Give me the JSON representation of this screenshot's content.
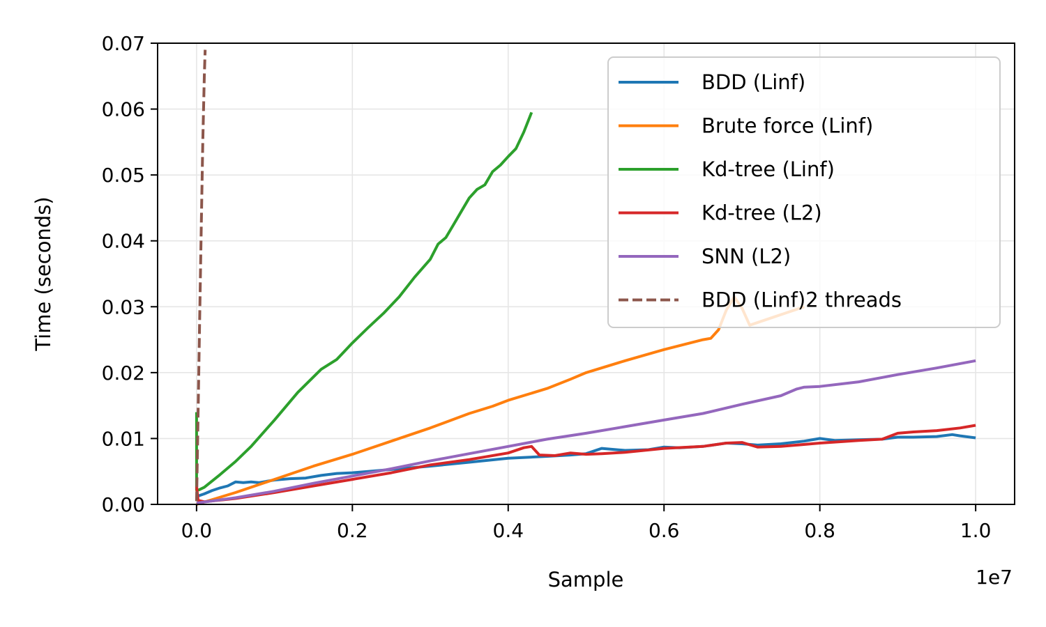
{
  "chart_data": {
    "type": "line",
    "title": "",
    "xlabel": "Sample",
    "ylabel": "Time (seconds)",
    "x_offset_label": "1e7",
    "xlim": [
      -0.05,
      1.05
    ],
    "ylim": [
      0,
      0.07
    ],
    "xticks": [
      0.0,
      0.2,
      0.4,
      0.6,
      0.8,
      1.0
    ],
    "xtick_labels": [
      "0.0",
      "0.2",
      "0.4",
      "0.6",
      "0.8",
      "1.0"
    ],
    "yticks": [
      0.0,
      0.01,
      0.02,
      0.03,
      0.04,
      0.05,
      0.06,
      0.07
    ],
    "ytick_labels": [
      "0.00",
      "0.01",
      "0.02",
      "0.03",
      "0.04",
      "0.05",
      "0.06",
      "0.07"
    ],
    "grid": true,
    "legend_position": "top-right",
    "series": [
      {
        "name": "BDD (Linf)",
        "color": "#1f77b4",
        "dash": "solid",
        "x": [
          0.0,
          0.01,
          0.02,
          0.03,
          0.04,
          0.05,
          0.06,
          0.07,
          0.08,
          0.09,
          0.1,
          0.12,
          0.14,
          0.16,
          0.18,
          0.2,
          0.22,
          0.25,
          0.3,
          0.35,
          0.4,
          0.45,
          0.48,
          0.5,
          0.52,
          0.55,
          0.58,
          0.6,
          0.62,
          0.65,
          0.68,
          0.7,
          0.72,
          0.75,
          0.78,
          0.8,
          0.82,
          0.85,
          0.88,
          0.9,
          0.92,
          0.95,
          0.97,
          0.98,
          1.0
        ],
        "y": [
          0.0012,
          0.0016,
          0.0021,
          0.0025,
          0.0028,
          0.0034,
          0.0033,
          0.0034,
          0.0033,
          0.0035,
          0.0037,
          0.0039,
          0.004,
          0.0044,
          0.0047,
          0.0048,
          0.005,
          0.0053,
          0.0058,
          0.0064,
          0.007,
          0.0073,
          0.0075,
          0.0077,
          0.0085,
          0.0082,
          0.0083,
          0.0087,
          0.0086,
          0.0088,
          0.0093,
          0.0092,
          0.009,
          0.0092,
          0.0096,
          0.01,
          0.0097,
          0.0098,
          0.0099,
          0.0102,
          0.0102,
          0.0103,
          0.0106,
          0.0104,
          0.0101
        ]
      },
      {
        "name": "Brute force (Linf)",
        "color": "#ff7f0e",
        "dash": "solid",
        "x": [
          0.0,
          0.05,
          0.1,
          0.15,
          0.2,
          0.25,
          0.3,
          0.35,
          0.38,
          0.4,
          0.45,
          0.48,
          0.5,
          0.55,
          0.6,
          0.65,
          0.66,
          0.67,
          0.68,
          0.69,
          0.7,
          0.71,
          0.73,
          0.76,
          0.78
        ],
        "y": [
          0.0,
          0.0018,
          0.0038,
          0.0058,
          0.0076,
          0.0096,
          0.0116,
          0.0138,
          0.0149,
          0.0158,
          0.0176,
          0.019,
          0.02,
          0.0218,
          0.0235,
          0.025,
          0.0252,
          0.0265,
          0.0295,
          0.0315,
          0.0298,
          0.0272,
          0.028,
          0.0292,
          0.03
        ]
      },
      {
        "name": "Kd-tree (Linf)",
        "color": "#2ca02c",
        "dash": "solid",
        "x": [
          0.0,
          0.0,
          0.003,
          0.01,
          0.03,
          0.05,
          0.07,
          0.1,
          0.13,
          0.16,
          0.18,
          0.2,
          0.22,
          0.24,
          0.26,
          0.28,
          0.3,
          0.31,
          0.32,
          0.33,
          0.34,
          0.35,
          0.36,
          0.37,
          0.38,
          0.39,
          0.4,
          0.41,
          0.42,
          0.43
        ],
        "y": [
          0.014,
          0.0022,
          0.0022,
          0.0026,
          0.0045,
          0.0065,
          0.0088,
          0.0128,
          0.017,
          0.0205,
          0.022,
          0.0245,
          0.0268,
          0.029,
          0.0315,
          0.0345,
          0.0372,
          0.0395,
          0.0405,
          0.0425,
          0.0445,
          0.0465,
          0.0478,
          0.0485,
          0.0505,
          0.0515,
          0.0528,
          0.054,
          0.0565,
          0.0595
        ]
      },
      {
        "name": "Kd-tree (L2)",
        "color": "#d62728",
        "dash": "solid",
        "x": [
          0.0,
          0.002,
          0.01,
          0.05,
          0.1,
          0.15,
          0.2,
          0.25,
          0.3,
          0.35,
          0.4,
          0.42,
          0.43,
          0.44,
          0.46,
          0.48,
          0.5,
          0.52,
          0.55,
          0.6,
          0.65,
          0.68,
          0.7,
          0.72,
          0.75,
          0.8,
          0.85,
          0.88,
          0.9,
          0.92,
          0.95,
          0.98,
          1.0
        ],
        "y": [
          0.0028,
          0.0006,
          0.0004,
          0.0009,
          0.0018,
          0.0028,
          0.0038,
          0.0048,
          0.006,
          0.0068,
          0.0078,
          0.0086,
          0.0088,
          0.0075,
          0.0074,
          0.0078,
          0.0076,
          0.0077,
          0.0079,
          0.0085,
          0.0088,
          0.0093,
          0.0094,
          0.0087,
          0.0088,
          0.0093,
          0.0097,
          0.0099,
          0.0108,
          0.011,
          0.0112,
          0.0116,
          0.012
        ]
      },
      {
        "name": "SNN (L2)",
        "color": "#9467bd",
        "dash": "solid",
        "x": [
          0.0,
          0.05,
          0.1,
          0.15,
          0.2,
          0.25,
          0.3,
          0.35,
          0.4,
          0.45,
          0.5,
          0.55,
          0.6,
          0.65,
          0.7,
          0.75,
          0.77,
          0.78,
          0.8,
          0.85,
          0.9,
          0.95,
          1.0
        ],
        "y": [
          0.0002,
          0.001,
          0.002,
          0.0032,
          0.0043,
          0.0054,
          0.0066,
          0.0077,
          0.0088,
          0.0099,
          0.0108,
          0.0118,
          0.0128,
          0.0138,
          0.0152,
          0.0165,
          0.0175,
          0.0178,
          0.0179,
          0.0186,
          0.0197,
          0.0207,
          0.0218
        ]
      },
      {
        "name": "BDD (Linf)2 threads",
        "color": "#8c564b",
        "dash": "dashed",
        "x": [
          0.0,
          0.002,
          0.004,
          0.006,
          0.008,
          0.01,
          0.011
        ],
        "y": [
          0.0005,
          0.014,
          0.028,
          0.042,
          0.055,
          0.065,
          0.069
        ]
      }
    ]
  }
}
